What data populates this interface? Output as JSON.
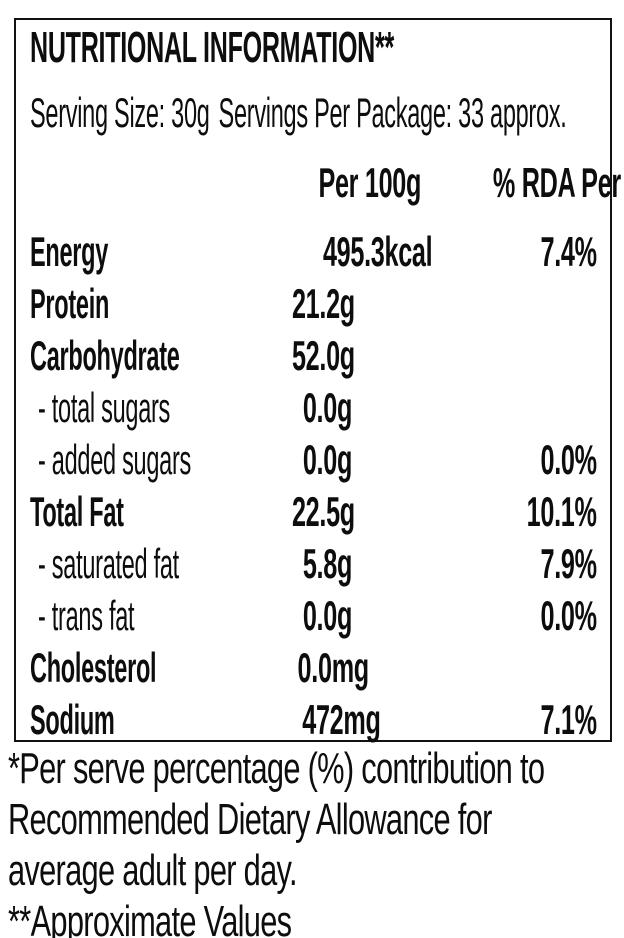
{
  "label": {
    "title": "NUTRITIONAL INFORMATION**",
    "serving_size": "Serving Size: 30g",
    "servings_per_package": "Servings Per Package: 33 approx.",
    "columns": {
      "per_100g": "Per 100g",
      "rda_per_serve": "% RDA Per Serve*"
    },
    "rows": [
      {
        "label": "Energy",
        "per_100g": "495.3kcal",
        "rda": "7.4%"
      },
      {
        "label": "Protein",
        "per_100g": "21.2g",
        "rda": ""
      },
      {
        "label": "Carbohydrate",
        "per_100g": "52.0g",
        "rda": ""
      },
      {
        "label": "- total sugars",
        "per_100g": "0.0g",
        "rda": ""
      },
      {
        "label": "- added sugars",
        "per_100g": "0.0g",
        "rda": "0.0%"
      },
      {
        "label": "Total Fat",
        "per_100g": "22.5g",
        "rda": "10.1%"
      },
      {
        "label": "- saturated fat",
        "per_100g": "5.8g",
        "rda": "7.9%"
      },
      {
        "label": "- trans fat",
        "per_100g": "0.0g",
        "rda": "0.0%"
      },
      {
        "label": "Cholesterol",
        "per_100g": "0.0mg",
        "rda": ""
      },
      {
        "label": "Sodium",
        "per_100g": "472mg",
        "rda": "7.1%"
      }
    ],
    "footnotes": {
      "lines": [
        "*Per serve percentage (%) contribution to",
        "Recommended Dietary Allowance for",
        "average adult per day.",
        "**Approximate Values"
      ]
    }
  },
  "colors": {
    "text": "#0d0d0d",
    "border": "#121212",
    "background": "#ffffff"
  }
}
